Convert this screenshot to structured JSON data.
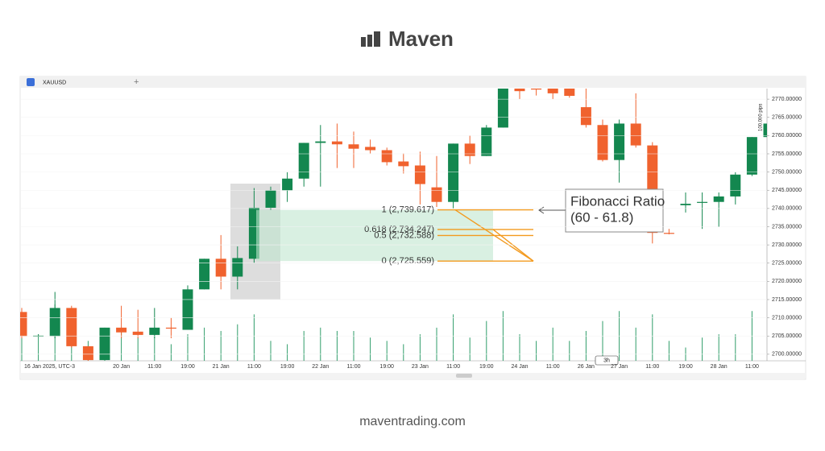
{
  "header": {
    "brand": "Maven"
  },
  "toolbar": {
    "symbol": "XAUUSD",
    "interval_badge": "3h",
    "measure": "100.000 pips"
  },
  "footer": {
    "url": "maventrading.com"
  },
  "chart_data": {
    "type": "candlestick",
    "up_color": "#13874f",
    "down_color": "#f0622e",
    "volume_color": "#2f9d6a",
    "categories": [
      "16 Jan 2025, UTC-3",
      null,
      null,
      null,
      null,
      null,
      "20 Jan",
      null,
      "11:00",
      null,
      "19:00",
      null,
      "21 Jan",
      null,
      "11:00",
      null,
      "19:00",
      null,
      "22 Jan",
      null,
      "11:00",
      null,
      "19:00",
      null,
      "23 Jan",
      null,
      "11:00",
      null,
      "19:00",
      null,
      "24 Jan",
      null,
      "11:00",
      null,
      "26 Jan",
      null,
      "27 Jan",
      null,
      "11:00",
      null,
      "19:00",
      null,
      "28 Jan",
      null,
      "11:00",
      null
    ],
    "open": [
      2711.6,
      2705.1,
      2704.9,
      2712.7,
      2702.2,
      2698.4,
      2707.3,
      2706.2,
      2705.3,
      2707.3,
      2706.7,
      2717.8,
      2726.2,
      2721.3,
      2726.2,
      2740.2,
      2744.9,
      2748.2,
      2758.0,
      2758.4,
      2757.6,
      2756.9,
      2756.0,
      2752.9,
      2751.8,
      2745.8,
      2741.8,
      2757.8,
      2754.4,
      2762.2,
      2772.9,
      2772.9,
      2772.9,
      2772.9,
      2767.8,
      2762.9,
      2753.3,
      2763.3,
      2757.3,
      2733.3,
      2740.9,
      2741.6,
      2741.8,
      2743.3,
      2749.3,
      2759.6
    ],
    "high": [
      2712.7,
      2705.5,
      2717.1,
      2713.3,
      2702.2,
      2707.3,
      2713.3,
      2712.2,
      2712.7,
      2710.0,
      2718.9,
      2726.2,
      2732.7,
      2729.6,
      2745.6,
      2746.0,
      2750.0,
      2758.0,
      2762.9,
      2763.3,
      2761.1,
      2758.9,
      2756.7,
      2755.1,
      2755.6,
      2754.4,
      2757.8,
      2760.0,
      2762.9,
      2772.9,
      2772.9,
      2772.9,
      2772.9,
      2772.9,
      2772.9,
      2764.4,
      2764.4,
      2771.6,
      2758.2,
      2734.4,
      2744.4,
      2744.4,
      2744.4,
      2750.0,
      2759.6,
      2766.7
    ],
    "low": [
      2704.4,
      2704.8,
      2704.4,
      2701.8,
      2697.8,
      2698.4,
      2704.4,
      2704.4,
      2704.4,
      2704.4,
      2706.7,
      2717.8,
      2717.8,
      2717.8,
      2725.1,
      2739.6,
      2741.8,
      2746.0,
      2746.0,
      2751.1,
      2751.1,
      2755.1,
      2751.8,
      2749.6,
      2741.1,
      2740.4,
      2740.0,
      2752.2,
      2754.4,
      2762.2,
      2770.0,
      2771.0,
      2770.0,
      2770.4,
      2762.2,
      2752.9,
      2747.1,
      2756.7,
      2730.4,
      2732.9,
      2738.9,
      2734.4,
      2734.9,
      2741.1,
      2748.9,
      2758.9
    ],
    "close": [
      2704.9,
      2705.1,
      2712.7,
      2702.2,
      2698.4,
      2707.3,
      2706.0,
      2705.3,
      2707.3,
      2707.1,
      2717.8,
      2726.2,
      2721.3,
      2726.4,
      2740.2,
      2744.9,
      2748.2,
      2758.0,
      2758.4,
      2757.6,
      2756.4,
      2756.0,
      2752.7,
      2751.6,
      2746.7,
      2741.8,
      2757.8,
      2754.4,
      2762.2,
      2772.9,
      2772.2,
      2772.7,
      2771.6,
      2770.9,
      2762.9,
      2753.3,
      2763.3,
      2757.3,
      2733.3,
      2733.1,
      2741.3,
      2741.8,
      2743.3,
      2749.3,
      2759.6,
      2763.3
    ],
    "volume": [
      60,
      40,
      85,
      50,
      30,
      40,
      45,
      35,
      50,
      25,
      40,
      50,
      45,
      55,
      70,
      30,
      25,
      45,
      50,
      45,
      45,
      35,
      30,
      25,
      40,
      50,
      70,
      35,
      60,
      75,
      40,
      30,
      50,
      30,
      45,
      60,
      75,
      50,
      70,
      30,
      20,
      35,
      40,
      40,
      75,
      60
    ],
    "ylim": [
      2698.2,
      2772.9
    ],
    "yticks": [
      {
        "value": 2700,
        "label": "2700.00000"
      },
      {
        "value": 2705,
        "label": "2705.00000"
      },
      {
        "value": 2710,
        "label": "2710.00000"
      },
      {
        "value": 2715,
        "label": "2715.00000"
      },
      {
        "value": 2720,
        "label": "2720.00000"
      },
      {
        "value": 2725,
        "label": "2725.00000"
      },
      {
        "value": 2730,
        "label": "2730.00000"
      },
      {
        "value": 2735,
        "label": "2735.00000"
      },
      {
        "value": 2740,
        "label": "2740.00000"
      },
      {
        "value": 2745,
        "label": "2745.00000"
      },
      {
        "value": 2750,
        "label": "2750.00000"
      },
      {
        "value": 2755,
        "label": "2755.00000"
      },
      {
        "value": 2760,
        "label": "2760.00000"
      },
      {
        "value": 2765,
        "label": "2765.00000"
      },
      {
        "value": 2770,
        "label": "2770.00000"
      }
    ],
    "fibonacci": [
      {
        "value": 2739.617,
        "label": "1 (2,739.617)"
      },
      {
        "value": 2734.247,
        "label": "0.618 (2,734.247)"
      },
      {
        "value": 2732.588,
        "label": "0.5 (2,732.588)"
      },
      {
        "value": 2725.559,
        "label": "0 (2,725.559)"
      }
    ],
    "fib_color": "#f39a1e",
    "annotation": [
      "Fibonacci Ratio",
      "(60 - 61.8)"
    ]
  }
}
